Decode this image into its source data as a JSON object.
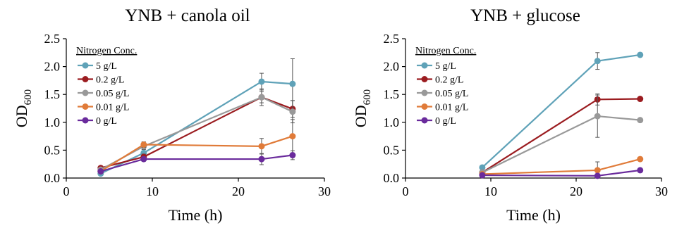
{
  "chart_data": [
    {
      "type": "line",
      "title": "YNB + canola oil",
      "xlabel": "Time (h)",
      "ylabel_main": "OD",
      "ylabel_sub": "600",
      "xlim": [
        0,
        30
      ],
      "ylim": [
        0,
        2.5
      ],
      "xticks": [
        "0",
        "10",
        "20",
        "30"
      ],
      "yticks": [
        "0.0",
        "0.5",
        "1.0",
        "1.5",
        "2.0",
        "2.5"
      ],
      "legend_title": "Nitrogen Conc.",
      "legend_position": "top-left",
      "series": [
        {
          "name": "5 g/L",
          "color": "#5fa2b8",
          "x": [
            4,
            9,
            22.7,
            26.3
          ],
          "y": [
            0.08,
            0.45,
            1.73,
            1.69
          ],
          "err": [
            0.02,
            0.06,
            0.15,
            0.45
          ]
        },
        {
          "name": "0.2 g/L",
          "color": "#9b1c20",
          "x": [
            4,
            9,
            22.7,
            26.3
          ],
          "y": [
            0.18,
            0.38,
            1.45,
            1.24
          ],
          "err": [
            0.03,
            0.05,
            0.1,
            0.15
          ]
        },
        {
          "name": "0.05 g/L",
          "color": "#999999",
          "x": [
            4,
            9,
            22.7,
            26.3
          ],
          "y": [
            0.15,
            0.57,
            1.45,
            1.19
          ],
          "err": [
            0.02,
            0.05,
            0.15,
            0.2
          ]
        },
        {
          "name": "0.01 g/L",
          "color": "#e07b39",
          "x": [
            4,
            9,
            22.7,
            26.3
          ],
          "y": [
            0.12,
            0.6,
            0.57,
            0.75
          ],
          "err": [
            0.02,
            0.05,
            0.14,
            0.3
          ]
        },
        {
          "name": "0 g/L",
          "color": "#6a2b9c",
          "x": [
            4,
            9,
            22.7,
            26.3
          ],
          "y": [
            0.12,
            0.34,
            0.34,
            0.41
          ],
          "err": [
            0.02,
            0.04,
            0.1,
            0.08
          ]
        }
      ]
    },
    {
      "type": "line",
      "title": "YNB + glucose",
      "xlabel": "Time (h)",
      "ylabel_main": "OD",
      "ylabel_sub": "600",
      "xlim": [
        0,
        30
      ],
      "ylim": [
        0,
        2.5
      ],
      "xticks": [
        "0",
        "10",
        "20",
        "30"
      ],
      "yticks": [
        "0.0",
        "0.5",
        "1.0",
        "1.5",
        "2.0",
        "2.5"
      ],
      "legend_title": "Nitrogen Conc.",
      "legend_position": "top-left",
      "series": [
        {
          "name": "5 g/L",
          "color": "#5fa2b8",
          "x": [
            9,
            22.5,
            27.5
          ],
          "y": [
            0.19,
            2.1,
            2.21
          ],
          "err": [
            0.02,
            0.15,
            0.03
          ]
        },
        {
          "name": "0.2 g/L",
          "color": "#9b1c20",
          "x": [
            9,
            22.5,
            27.5
          ],
          "y": [
            0.1,
            1.41,
            1.42
          ],
          "err": [
            0.02,
            0.1,
            0.03
          ]
        },
        {
          "name": "0.05 g/L",
          "color": "#999999",
          "x": [
            9,
            22.5,
            27.5
          ],
          "y": [
            0.1,
            1.11,
            1.04
          ],
          "err": [
            0.02,
            0.38,
            0.03
          ]
        },
        {
          "name": "0.01 g/L",
          "color": "#e07b39",
          "x": [
            9,
            22.5,
            27.5
          ],
          "y": [
            0.07,
            0.14,
            0.34
          ],
          "err": [
            0.02,
            0.15,
            0.03
          ]
        },
        {
          "name": "0 g/L",
          "color": "#6a2b9c",
          "x": [
            9,
            22.5,
            27.5
          ],
          "y": [
            0.05,
            0.04,
            0.14
          ],
          "err": [
            0.02,
            0.02,
            0.02
          ]
        }
      ]
    }
  ]
}
